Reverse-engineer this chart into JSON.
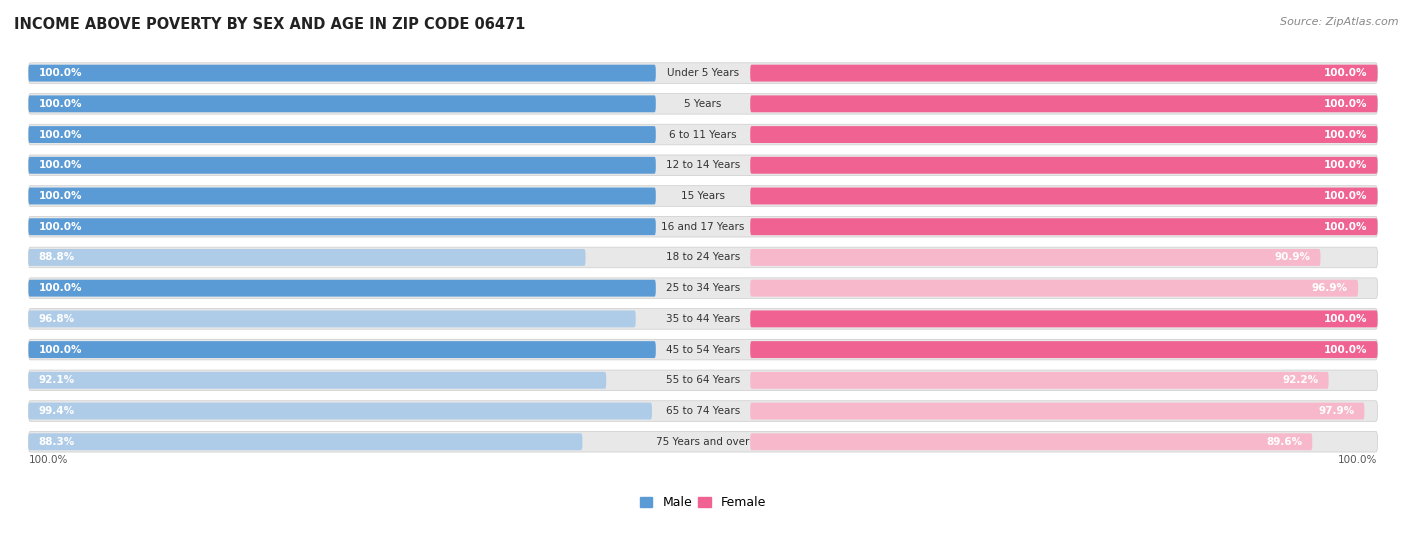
{
  "title": "INCOME ABOVE POVERTY BY SEX AND AGE IN ZIP CODE 06471",
  "source": "Source: ZipAtlas.com",
  "categories": [
    "Under 5 Years",
    "5 Years",
    "6 to 11 Years",
    "12 to 14 Years",
    "15 Years",
    "16 and 17 Years",
    "18 to 24 Years",
    "25 to 34 Years",
    "35 to 44 Years",
    "45 to 54 Years",
    "55 to 64 Years",
    "65 to 74 Years",
    "75 Years and over"
  ],
  "male_values": [
    100.0,
    100.0,
    100.0,
    100.0,
    100.0,
    100.0,
    88.8,
    100.0,
    96.8,
    100.0,
    92.1,
    99.4,
    88.3
  ],
  "female_values": [
    100.0,
    100.0,
    100.0,
    100.0,
    100.0,
    100.0,
    90.9,
    96.9,
    100.0,
    100.0,
    92.2,
    97.9,
    89.6
  ],
  "male_color_full": "#5b9bd5",
  "male_color_partial": "#aecce8",
  "female_color_full": "#f06292",
  "female_color_partial": "#f7b8cc",
  "male_label": "Male",
  "female_label": "Female",
  "bg_color": "#ffffff",
  "row_bg_color": "#e8e8e8",
  "title_fontsize": 10.5,
  "source_fontsize": 8,
  "cat_label_fontsize": 7.5,
  "bar_label_fontsize": 7.5,
  "legend_fontsize": 9,
  "max_val": 100.0,
  "x_axis_label_left": "100.0%",
  "x_axis_label_right": "100.0%"
}
